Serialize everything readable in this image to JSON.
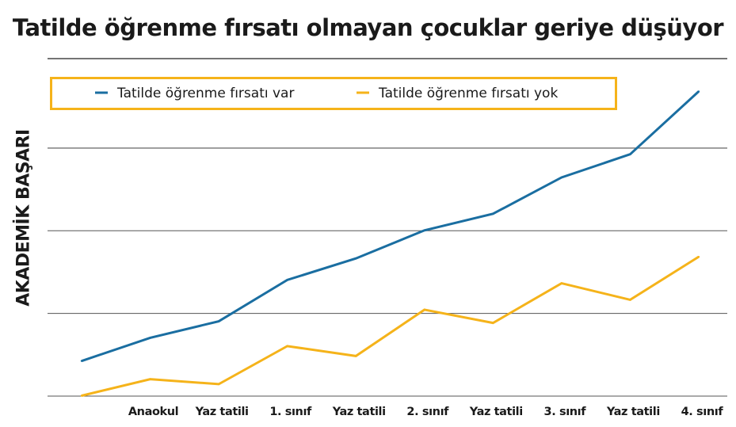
{
  "chart_data": {
    "type": "line",
    "title": "Tatilde öğrenme fırsatı olmayan çocuklar geriye düşüyor",
    "ylabel": "AKADEMİK BAŞARI",
    "xlabel": "",
    "categories": [
      "",
      "Anaokul",
      "Yaz tatili",
      "1. sınıf",
      "Yaz tatili",
      "2. sınıf",
      "Yaz tatili",
      "3. sınıf",
      "Yaz tatili",
      "4. sınıf"
    ],
    "ylim": [
      0,
      100
    ],
    "grid": true,
    "legend_position": "top-left",
    "series": [
      {
        "name": "Tatilde öğrenme fırsatı var",
        "color": "#1a6ea1",
        "values": [
          10.5,
          17.5,
          22.5,
          35,
          41.5,
          50,
          55,
          66,
          73,
          92
        ]
      },
      {
        "name": "Tatilde öğrenme fırsatı yok",
        "color": "#f5b31a",
        "values": [
          0,
          5,
          3.5,
          15,
          12,
          26,
          22,
          34,
          29,
          42
        ]
      }
    ]
  },
  "colors": {
    "legend_border": "#f5b31a",
    "grid": "#555555",
    "top_rule": "#222222"
  }
}
